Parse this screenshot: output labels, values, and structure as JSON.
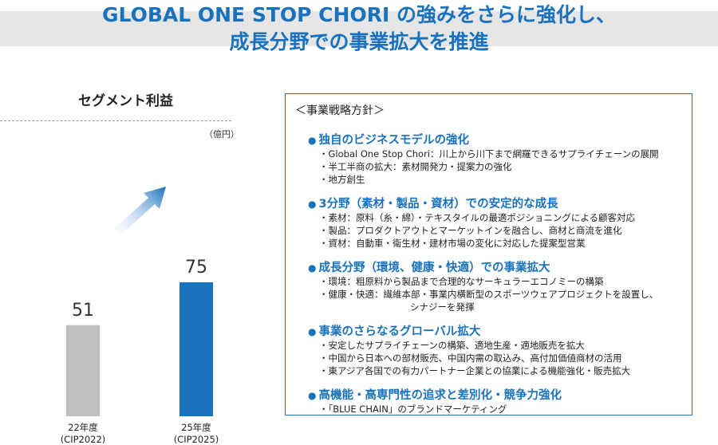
{
  "header": {
    "line1": "GLOBAL ONE STOP CHORI の強みをさらに強化し、",
    "line2": "成長分野での事業拡大を推進"
  },
  "chart_data": {
    "type": "bar",
    "title": "セグメント利益",
    "unit": "（億円）",
    "categories": [
      {
        "line1": "22年度",
        "line2": "(CIP2022)"
      },
      {
        "line1": "25年度",
        "line2": "(CIP2025)"
      }
    ],
    "values": [
      51,
      75
    ],
    "value_labels": [
      "51",
      "75"
    ],
    "colors": [
      "#bfbfbf",
      "#1a72bd"
    ],
    "arrow": "increase",
    "ylim": [
      0,
      100
    ]
  },
  "policy": {
    "heading": "＜事業戦略方針＞",
    "sections": [
      {
        "title": "独自のビジネスモデルの強化",
        "items": [
          "・Global One Stop Chori：川上から川下まで網羅できるサプライチェーンの展開",
          "・半工半商の拡大：素材開発力・提案力の強化",
          "・地方創生"
        ]
      },
      {
        "title": "3分野（素材・製品・資材）での安定的な成長",
        "items": [
          "・素材：原料（糸・綿）・テキスタイルの最適ポジショニングによる顧客対応",
          "・製品：プロダクトアウトとマーケットインを融合し、商材と商流を進化",
          "・資材：自動車・衛生材・建材市場の変化に対応した提案型営業"
        ]
      },
      {
        "title": "成長分野（環境、健康・快適）での事業拡大",
        "items": [
          "・環境：粗原料から製品まで合理的なサーキュラーエコノミーの構築",
          "・健康・快適：繊維本部・事業内横断型のスポーツウェアプロジェクトを設置し、"
        ],
        "continuation": "シナジーを発揮"
      },
      {
        "title": "事業のさらなるグローバル拡大",
        "items": [
          "・安定したサプライチェーンの構築、適地生産・適地販売を拡大",
          "・中国から日本への部材販売、中国内需の取込み、高付加価値商材の活用",
          "・東アジア各国での有力パートナー企業との協業による機能強化・販売拡大"
        ]
      },
      {
        "title": "高機能・高専門性の追求と差別化・競争力強化",
        "items": [
          "・「BLUE CHAIN」のブランドマーケティング"
        ]
      }
    ],
    "bullet": "●"
  }
}
